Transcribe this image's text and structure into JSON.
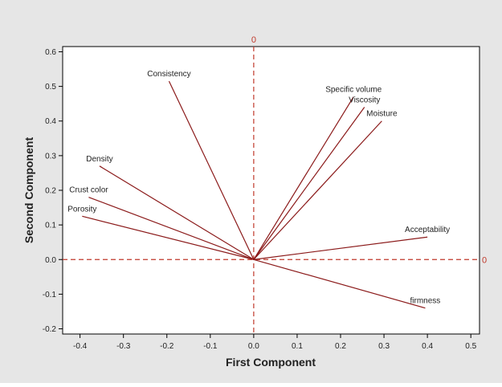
{
  "chart_data": {
    "type": "loading-plot",
    "xlabel": "First Component",
    "ylabel": "Second Component",
    "xlim": [
      -0.44,
      0.52
    ],
    "ylim": [
      -0.215,
      0.615
    ],
    "xticks": [
      -0.4,
      -0.3,
      -0.2,
      -0.1,
      0.0,
      0.1,
      0.2,
      0.3,
      0.4,
      0.5
    ],
    "xtick_labels": [
      "-0.4",
      "-0.3",
      "-0.2",
      "-0.1",
      "0.0",
      "0.1",
      "0.2",
      "0.3",
      "0.4",
      "0.5"
    ],
    "yticks": [
      -0.2,
      -0.1,
      0.0,
      0.1,
      0.2,
      0.3,
      0.4,
      0.5,
      0.6
    ],
    "ytick_labels": [
      "-0.2",
      "-0.1",
      "0.0",
      "0.1",
      "0.2",
      "0.3",
      "0.4",
      "0.5",
      "0.6"
    ],
    "reference_lines": {
      "vertical": {
        "x": 0,
        "label": "0"
      },
      "horizontal": {
        "y": 0,
        "label": "0"
      }
    },
    "vectors": [
      {
        "name": "Consistency",
        "x": -0.195,
        "y": 0.515
      },
      {
        "name": "Density",
        "x": -0.355,
        "y": 0.27
      },
      {
        "name": "Crust color",
        "x": -0.38,
        "y": 0.18
      },
      {
        "name": "Porosity",
        "x": -0.395,
        "y": 0.125
      },
      {
        "name": "Specific volume",
        "x": 0.23,
        "y": 0.47
      },
      {
        "name": "Viscosity",
        "x": 0.255,
        "y": 0.44
      },
      {
        "name": "Moisture",
        "x": 0.295,
        "y": 0.4
      },
      {
        "name": "Acceptability",
        "x": 0.4,
        "y": 0.065
      },
      {
        "name": "firmness",
        "x": 0.395,
        "y": -0.14
      }
    ],
    "grid": false,
    "colors": {
      "outer_background": "#e6e6e6",
      "vector": "#8b1a1a",
      "reference_line": "#c0392b",
      "axis": "#000000"
    }
  }
}
